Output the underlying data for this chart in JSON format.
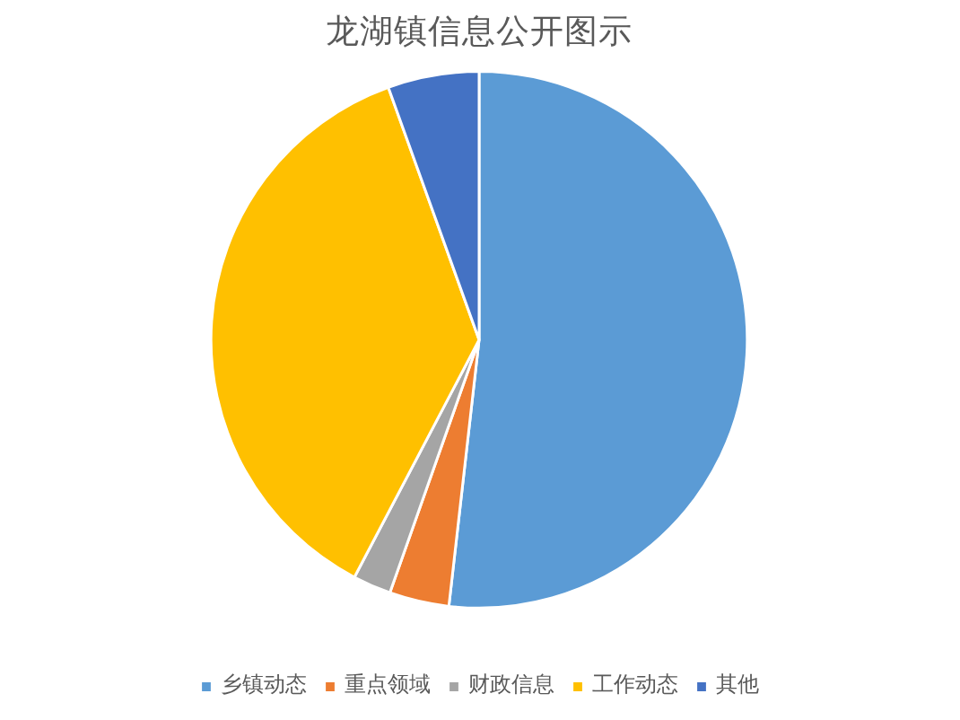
{
  "chart_data": {
    "type": "pie",
    "title": "龙湖镇信息公开图示",
    "categories": [
      "乡镇动态",
      "重点领域",
      "财政信息",
      "工作动态",
      "其他"
    ],
    "values": [
      51.8,
      3.6,
      2.3,
      36.8,
      5.5
    ],
    "colors": [
      "#5b9bd5",
      "#ed7d31",
      "#a5a5a5",
      "#ffc000",
      "#4472c4"
    ],
    "legend": "bottom"
  }
}
